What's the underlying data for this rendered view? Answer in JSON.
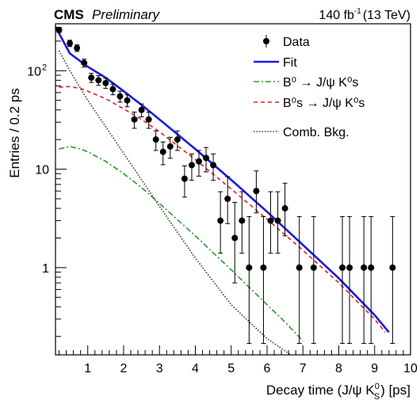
{
  "header": {
    "experiment": "CMS",
    "status": "Preliminary",
    "lumi_main": "140 fb",
    "lumi_sup": "-1",
    "lumi_energy": "(13 TeV)"
  },
  "axes": {
    "x_tick_labels": [
      "1",
      "2",
      "3",
      "4",
      "5",
      "6",
      "7",
      "8",
      "9",
      "10"
    ],
    "y_tick_labels": [
      {
        "value": 1,
        "text": "1"
      },
      {
        "value": 10,
        "text": "10"
      },
      {
        "value": 100,
        "text": "10",
        "sup": "2"
      }
    ]
  },
  "chart_data": {
    "type": "scatter",
    "title": "",
    "xlabel_parts": {
      "base": "Decay time (J/ψ K",
      "sup": "0",
      "sub": "S",
      "tail": ") [ps]"
    },
    "ylabel": "Entries / 0.2 ps",
    "xlim": [
      0.1,
      10.0
    ],
    "ylim": [
      0.13,
      300
    ],
    "ylog": true,
    "grid": false,
    "legend_position": "top-right",
    "series": [
      {
        "name": "Data",
        "kind": "points",
        "color": "#000000",
        "x": [
          0.2,
          0.5,
          0.7,
          0.9,
          1.1,
          1.3,
          1.5,
          1.7,
          1.9,
          2.1,
          2.3,
          2.5,
          2.7,
          2.9,
          3.1,
          3.3,
          3.5,
          3.7,
          3.9,
          4.1,
          4.3,
          4.5,
          4.7,
          4.9,
          5.1,
          5.3,
          5.5,
          5.7,
          5.9,
          6.1,
          6.3,
          6.5,
          6.9,
          7.3,
          8.1,
          8.3,
          8.7,
          8.9,
          9.5
        ],
        "y": [
          260,
          190,
          170,
          120,
          85,
          80,
          75,
          65,
          55,
          50,
          32,
          40,
          32,
          20,
          15,
          17,
          20,
          8,
          11,
          12,
          13,
          11,
          3,
          5,
          2,
          3,
          1,
          6,
          1,
          3,
          3,
          4,
          1,
          1,
          1,
          1,
          1,
          1,
          1
        ],
        "err_low": [
          16,
          14,
          13,
          11,
          9,
          9,
          9,
          8,
          7,
          7,
          6,
          6,
          6,
          4.5,
          3.9,
          4.1,
          4.5,
          2.8,
          3.3,
          3.5,
          3.6,
          3.3,
          1.6,
          2.2,
          1.3,
          1.6,
          0.83,
          2.4,
          0.83,
          1.6,
          1.6,
          1.9,
          0.83,
          0.83,
          0.83,
          0.83,
          0.83,
          0.83,
          0.83
        ],
        "err_high": [
          16,
          14,
          13,
          11,
          9,
          9,
          9,
          8,
          7,
          7,
          6,
          6,
          6,
          4.5,
          3.9,
          4.1,
          4.5,
          2.8,
          3.3,
          3.5,
          3.6,
          3.3,
          2.9,
          3.4,
          2.6,
          2.9,
          2.3,
          3.6,
          2.3,
          2.9,
          2.9,
          3.2,
          2.3,
          2.3,
          2.3,
          2.3,
          2.3,
          2.3,
          2.3
        ]
      },
      {
        "name": "Fit",
        "kind": "curve",
        "color": "#1a1ae0",
        "dash": "",
        "x": [
          0.1,
          0.5,
          1,
          1.5,
          2,
          2.5,
          3,
          4,
          5,
          6,
          7,
          8,
          9,
          9.4
        ],
        "y": [
          280,
          150,
          110,
          85,
          62,
          45,
          32,
          16,
          7.8,
          3.7,
          1.7,
          0.78,
          0.33,
          0.22
        ]
      },
      {
        "name": "B⁰ → J/ψ K⁰s",
        "kind": "curve",
        "color": "#2a9a2a",
        "dash": "7,3,2,3",
        "x": [
          0.2,
          0.5,
          0.8,
          1,
          1.5,
          2,
          2.5,
          3,
          4,
          5,
          6,
          6.5,
          7
        ],
        "y": [
          16,
          17,
          16,
          15,
          12,
          9,
          6.5,
          4.5,
          2.1,
          0.95,
          0.42,
          0.28,
          0.18
        ]
      },
      {
        "name": "B⁰s → J/ψ K⁰s",
        "kind": "curve",
        "color": "#e02020",
        "dash": "5,4",
        "x": [
          0.2,
          0.5,
          0.8,
          1,
          1.5,
          2,
          2.5,
          3,
          4,
          5,
          6,
          7,
          8,
          9,
          9.3
        ],
        "y": [
          68,
          69,
          66,
          62,
          52,
          41,
          32,
          24,
          12.5,
          6.3,
          3.1,
          1.5,
          0.7,
          0.3,
          0.22
        ]
      },
      {
        "name": "Comb. Bkg.",
        "kind": "curve",
        "color": "#333333",
        "dash": "1.5,2",
        "x": [
          0.2,
          0.5,
          1,
          1.5,
          2,
          2.5,
          3,
          4,
          5,
          6,
          6.8
        ],
        "y": [
          160,
          100,
          50,
          27,
          14.5,
          7.8,
          4.2,
          1.25,
          0.42,
          0.19,
          0.12
        ]
      }
    ]
  }
}
